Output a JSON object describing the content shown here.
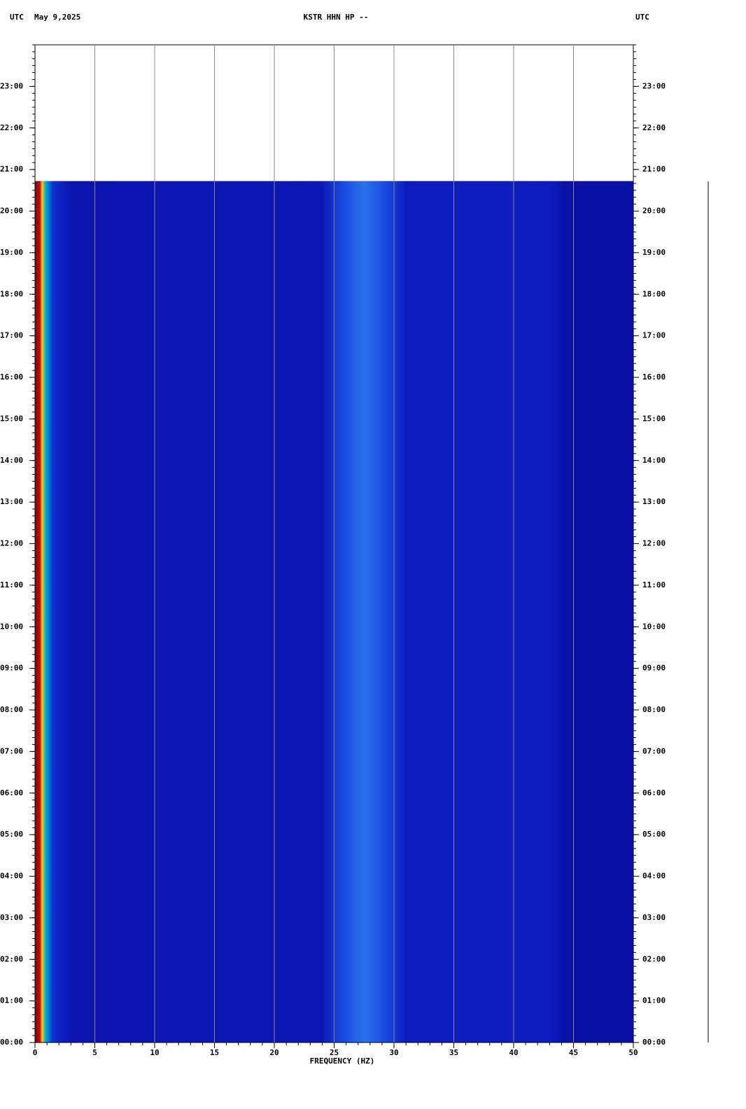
{
  "chart_data": {
    "type": "spectrogram",
    "header_left": "UTC",
    "date": "May 9,2025",
    "title": "KSTR HHN HP --",
    "header_right": "UTC",
    "xlabel": "FREQUENCY (HZ)",
    "xlim": [
      0,
      50
    ],
    "xticks": [
      0,
      5,
      10,
      15,
      20,
      25,
      30,
      35,
      40,
      45,
      50
    ],
    "ylim": [
      0,
      24
    ],
    "yticks": [
      {
        "value": 0,
        "label": "00:00"
      },
      {
        "value": 1,
        "label": "01:00"
      },
      {
        "value": 2,
        "label": "02:00"
      },
      {
        "value": 3,
        "label": "03:00"
      },
      {
        "value": 4,
        "label": "04:00"
      },
      {
        "value": 5,
        "label": "05:00"
      },
      {
        "value": 6,
        "label": "06:00"
      },
      {
        "value": 7,
        "label": "07:00"
      },
      {
        "value": 8,
        "label": "08:00"
      },
      {
        "value": 9,
        "label": "09:00"
      },
      {
        "value": 10,
        "label": "10:00"
      },
      {
        "value": 11,
        "label": "11:00"
      },
      {
        "value": 12,
        "label": "12:00"
      },
      {
        "value": 13,
        "label": "13:00"
      },
      {
        "value": 14,
        "label": "14:00"
      },
      {
        "value": 15,
        "label": "15:00"
      },
      {
        "value": 16,
        "label": "16:00"
      },
      {
        "value": 17,
        "label": "17:00"
      },
      {
        "value": 18,
        "label": "18:00"
      },
      {
        "value": 19,
        "label": "19:00"
      },
      {
        "value": 20,
        "label": "20:00"
      },
      {
        "value": 21,
        "label": "21:00"
      },
      {
        "value": 22,
        "label": "22:00"
      },
      {
        "value": 23,
        "label": "23:00"
      }
    ],
    "data_ylim": [
      0,
      20.72
    ],
    "grid": true,
    "color": "#0c14b0"
  }
}
